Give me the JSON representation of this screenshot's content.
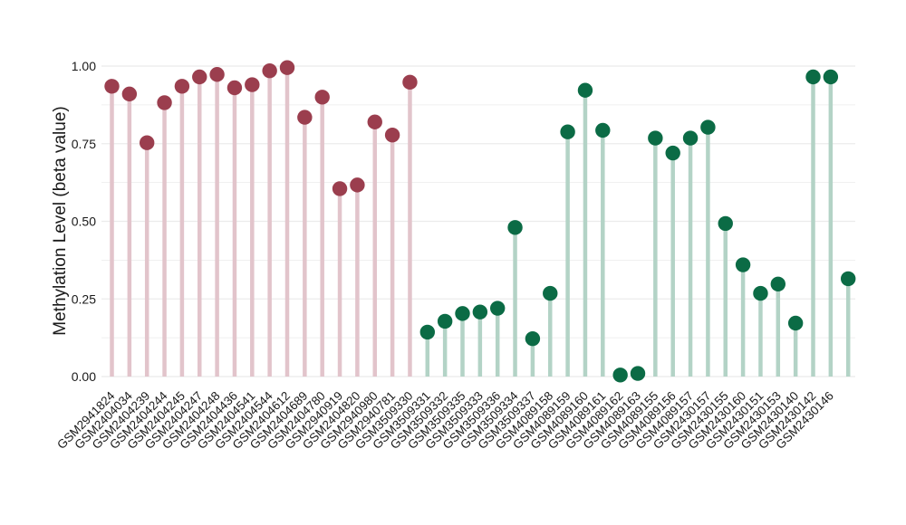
{
  "chart_data": {
    "type": "lollipop",
    "title": "",
    "xlabel": "",
    "ylabel": "Methylation Level (beta value)",
    "ylim": [
      0,
      1
    ],
    "yticks": [
      0.0,
      0.25,
      0.5,
      0.75,
      1.0
    ],
    "ytick_labels": [
      "0.00",
      "0.25",
      "0.50",
      "0.75",
      "1.00"
    ],
    "grid": true,
    "legend": "none",
    "colors": {
      "group1_point": "#9B3E4E",
      "group1_stem": "#E2C4CB",
      "group2_point": "#0B6B45",
      "group2_stem": "#B3D3C6",
      "grid": "#EBEBEB",
      "text": "#1A1A1A"
    },
    "samples": [
      {
        "label": "GSM2941824",
        "value": 0.935,
        "group": 1
      },
      {
        "label": "GSM2404034",
        "value": 0.91,
        "group": 1
      },
      {
        "label": "GSM2404239",
        "value": 0.753,
        "group": 1
      },
      {
        "label": "GSM2404244",
        "value": 0.882,
        "group": 1
      },
      {
        "label": "GSM2404245",
        "value": 0.935,
        "group": 1
      },
      {
        "label": "GSM2404247",
        "value": 0.965,
        "group": 1
      },
      {
        "label": "GSM2404248",
        "value": 0.973,
        "group": 1
      },
      {
        "label": "GSM2404436",
        "value": 0.93,
        "group": 1
      },
      {
        "label": "GSM2404541",
        "value": 0.94,
        "group": 1
      },
      {
        "label": "GSM2404544",
        "value": 0.985,
        "group": 1
      },
      {
        "label": "GSM2404612",
        "value": 0.995,
        "group": 1
      },
      {
        "label": "GSM2404689",
        "value": 0.835,
        "group": 1
      },
      {
        "label": "GSM2404780",
        "value": 0.9,
        "group": 1
      },
      {
        "label": "GSM2940919",
        "value": 0.605,
        "group": 1
      },
      {
        "label": "GSM2404820",
        "value": 0.617,
        "group": 1
      },
      {
        "label": "GSM2940980",
        "value": 0.82,
        "group": 1
      },
      {
        "label": "GSM2940781",
        "value": 0.778,
        "group": 1
      },
      {
        "label": "GSM3509330",
        "value": 0.948,
        "group": 1
      },
      {
        "label": "GSM3509331",
        "value": 0.143,
        "group": 2
      },
      {
        "label": "GSM3509332",
        "value": 0.178,
        "group": 2
      },
      {
        "label": "GSM3509335",
        "value": 0.203,
        "group": 2
      },
      {
        "label": "GSM3509333",
        "value": 0.208,
        "group": 2
      },
      {
        "label": "GSM3509336",
        "value": 0.22,
        "group": 2
      },
      {
        "label": "GSM3509334",
        "value": 0.48,
        "group": 2
      },
      {
        "label": "GSM3509337",
        "value": 0.122,
        "group": 2
      },
      {
        "label": "GSM4089158",
        "value": 0.268,
        "group": 2
      },
      {
        "label": "GSM4089159",
        "value": 0.788,
        "group": 2
      },
      {
        "label": "GSM4089160",
        "value": 0.922,
        "group": 2
      },
      {
        "label": "GSM4089161",
        "value": 0.793,
        "group": 2
      },
      {
        "label": "GSM4089162",
        "value": 0.005,
        "group": 2
      },
      {
        "label": "GSM4089163",
        "value": 0.01,
        "group": 2
      },
      {
        "label": "GSM4089155",
        "value": 0.768,
        "group": 2
      },
      {
        "label": "GSM4089156",
        "value": 0.72,
        "group": 2
      },
      {
        "label": "GSM4089157",
        "value": 0.768,
        "group": 2
      },
      {
        "label": "GSM2430157",
        "value": 0.803,
        "group": 2
      },
      {
        "label": "GSM2430155",
        "value": 0.493,
        "group": 2
      },
      {
        "label": "GSM2430160",
        "value": 0.36,
        "group": 2
      },
      {
        "label": "GSM2430151",
        "value": 0.268,
        "group": 2
      },
      {
        "label": "GSM2430153",
        "value": 0.298,
        "group": 2
      },
      {
        "label": "GSM2430140",
        "value": 0.172,
        "group": 2
      },
      {
        "label": "GSM2430142",
        "value": 0.965,
        "group": 2
      },
      {
        "label": "GSM2430146",
        "value": 0.965,
        "group": 2
      },
      {
        "label": "",
        "value": 0.315,
        "group": 2
      }
    ]
  }
}
